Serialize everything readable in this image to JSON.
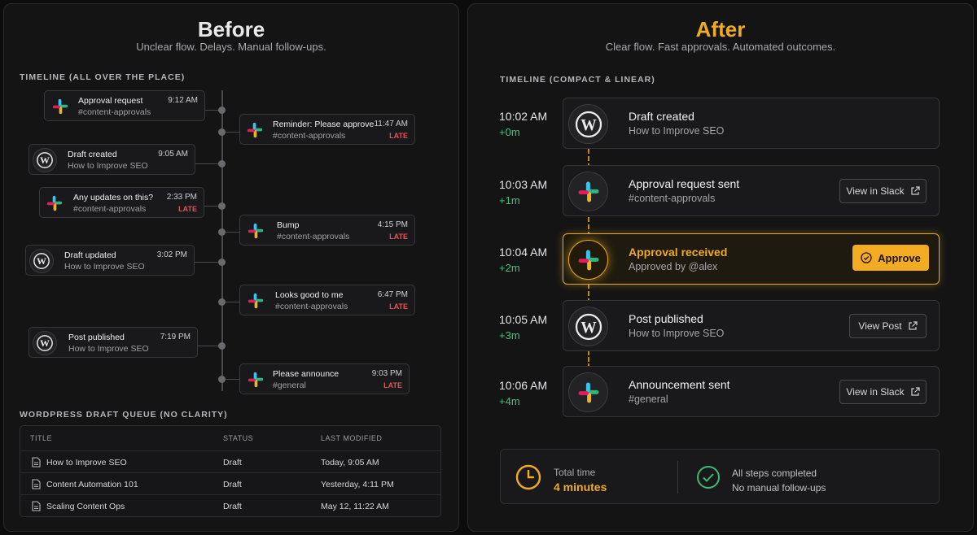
{
  "before": {
    "title": "Before",
    "subtitle": "Unclear flow. Delays. Manual follow-ups.",
    "timeline_label": "TIMELINE (ALL OVER THE PLACE)",
    "events": [
      {
        "icon": "slack-icon",
        "title": "Approval request",
        "sub": "#content-approvals",
        "time": "9:12 AM",
        "late": ""
      },
      {
        "icon": "slack-icon",
        "title": "Reminder: Please approve",
        "sub": "#content-approvals",
        "time": "11:47 AM",
        "late": "LATE"
      },
      {
        "icon": "wordpress-icon",
        "title": "Draft created",
        "sub": "How to Improve SEO",
        "time": "9:05 AM",
        "late": ""
      },
      {
        "icon": "slack-icon",
        "title": "Any updates on this?",
        "sub": "#content-approvals",
        "time": "2:33 PM",
        "late": "LATE"
      },
      {
        "icon": "slack-icon",
        "title": "Bump",
        "sub": "#content-approvals",
        "time": "4:15 PM",
        "late": "LATE"
      },
      {
        "icon": "wordpress-icon",
        "title": "Draft updated",
        "sub": "How to Improve SEO",
        "time": "3:02 PM",
        "late": ""
      },
      {
        "icon": "slack-icon",
        "title": "Looks good to me",
        "sub": "#content-approvals",
        "time": "6:47 PM",
        "late": "LATE"
      },
      {
        "icon": "wordpress-icon",
        "title": "Post published",
        "sub": "How to Improve SEO",
        "time": "7:19 PM",
        "late": ""
      },
      {
        "icon": "slack-icon",
        "title": "Please announce",
        "sub": "#general",
        "time": "9:03 PM",
        "late": "LATE"
      }
    ],
    "queue_label": "WORDPRESS DRAFT QUEUE (NO CLARITY)",
    "queue_headers": {
      "title": "TITLE",
      "status": "STATUS",
      "modified": "LAST MODIFIED"
    },
    "queue_rows": [
      {
        "title": "How to Improve SEO",
        "status": "Draft",
        "modified": "Today, 9:05 AM"
      },
      {
        "title": "Content Automation 101",
        "status": "Draft",
        "modified": "Yesterday, 4:11 PM"
      },
      {
        "title": "Scaling Content Ops",
        "status": "Draft",
        "modified": "May 12, 11:22 AM"
      }
    ]
  },
  "after": {
    "title": "After",
    "subtitle": "Clear flow. Fast approvals. Automated outcomes.",
    "timeline_label": "TIMELINE (COMPACT & LINEAR)",
    "accent": "#f0ab24",
    "steps": [
      {
        "time": "10:02 AM",
        "delta": "+0m",
        "icon": "wordpress-icon",
        "title": "Draft created",
        "sub": "How to Improve SEO",
        "button": ""
      },
      {
        "time": "10:03 AM",
        "delta": "+1m",
        "icon": "slack-icon",
        "title": "Approval request sent",
        "sub": "#content-approvals",
        "button": "View in Slack"
      },
      {
        "time": "10:04 AM",
        "delta": "+2m",
        "icon": "slack-icon",
        "title": "Approval received",
        "sub": "Approved by @alex",
        "button": "Approve"
      },
      {
        "time": "10:05 AM",
        "delta": "+3m",
        "icon": "wordpress-icon",
        "title": "Post published",
        "sub": "How to Improve SEO",
        "button": "View Post"
      },
      {
        "time": "10:06 AM",
        "delta": "+4m",
        "icon": "slack-icon",
        "title": "Announcement sent",
        "sub": "#general",
        "button": "View in Slack"
      }
    ],
    "summary": {
      "total_label": "Total time",
      "total_value": "4 minutes",
      "done_label": "All steps completed",
      "done_sub": "No manual follow-ups"
    }
  }
}
